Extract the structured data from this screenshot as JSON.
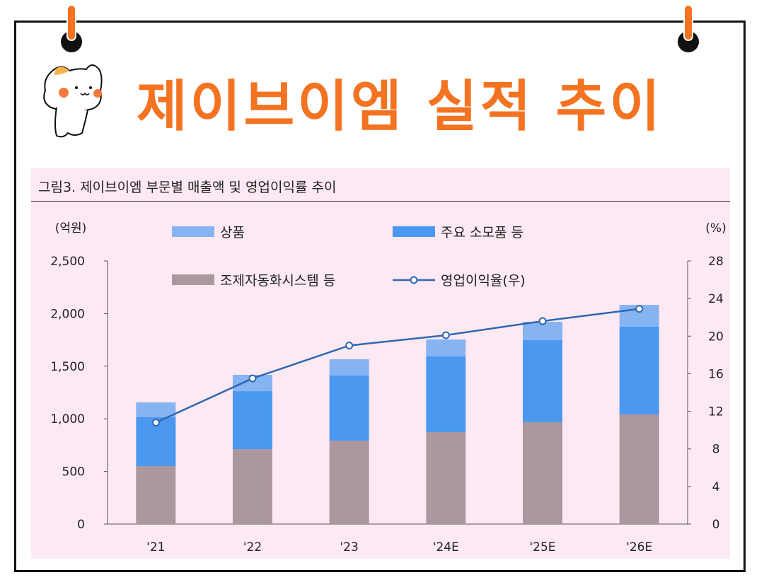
{
  "page_title": "제이브이엠 실적 추이",
  "figure_title": "그림3.   제이브이엠 부문별 매출액 및 영업이익률 추이",
  "chart_data": {
    "type": "bar",
    "stacked": true,
    "categories": [
      "'21",
      "'22",
      "'23",
      "'24E",
      "'25E",
      "'26E"
    ],
    "ylabel": "(억원)",
    "y2label": "(%)",
    "ylim": [
      0,
      2500
    ],
    "yticks": [
      "0",
      "500",
      "1,000",
      "1,500",
      "2,000",
      "2,500"
    ],
    "ytick_values": [
      0,
      500,
      1000,
      1500,
      2000,
      2500
    ],
    "y2lim": [
      0,
      28
    ],
    "y2ticks": [
      0,
      4,
      8,
      12,
      16,
      20,
      24,
      28
    ],
    "grid": false,
    "legend_placement": "top",
    "series": [
      {
        "name": "조제자동화시스템 등",
        "type": "bar",
        "color": "#ad979f",
        "values": [
          551,
          712,
          793,
          874,
          968,
          1042
        ]
      },
      {
        "name": "주요 소모품 등",
        "type": "bar",
        "color": "#4a98f0",
        "values": [
          464,
          551,
          618,
          719,
          779,
          833
        ]
      },
      {
        "name": "상품",
        "type": "bar",
        "color": "#86b3f2",
        "values": [
          141,
          155,
          155,
          161,
          175,
          208
        ]
      },
      {
        "name": "영업이익율(우)",
        "type": "line",
        "axis": "right",
        "color": "#2e67b1",
        "values": [
          10.8,
          15.5,
          19.0,
          20.1,
          21.6,
          22.9
        ]
      }
    ],
    "legend_order": [
      2,
      1,
      0,
      3
    ]
  }
}
